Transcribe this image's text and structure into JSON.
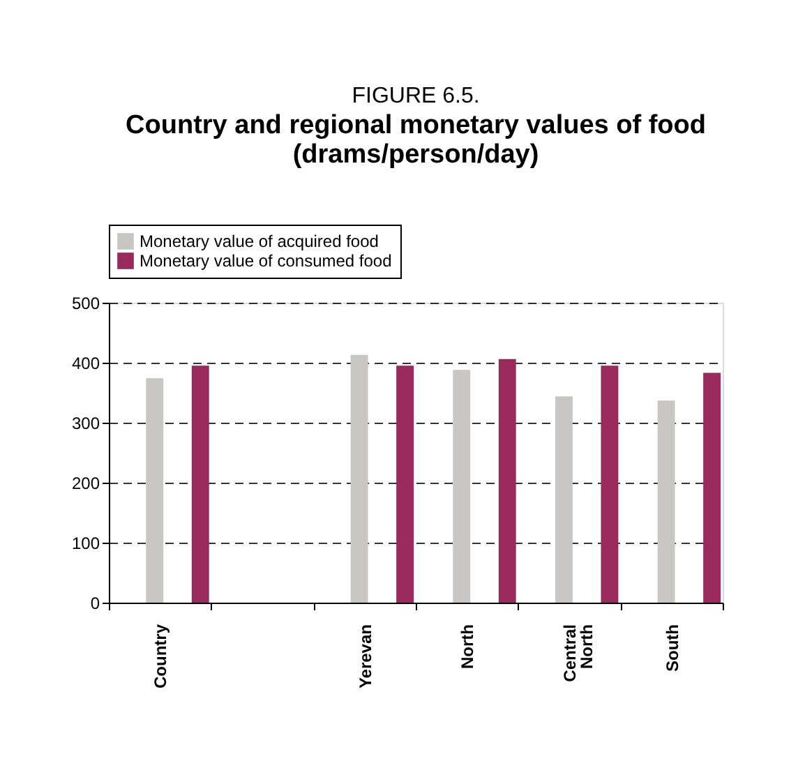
{
  "chart_data": {
    "type": "bar",
    "title": "FIGURE 6.5.",
    "subtitle": "Country and regional monetary values of food (drams/person/day)",
    "categories": [
      "Country",
      null,
      "Yerevan",
      "North",
      "Central North",
      "South"
    ],
    "series": [
      {
        "name": "Monetary value of acquired food",
        "color": "#c8c7c3",
        "values": [
          374,
          null,
          413,
          388,
          344,
          337
        ]
      },
      {
        "name": "Monetary value of consumed food",
        "color": "#9b2a5c",
        "values": [
          395,
          null,
          395,
          406,
          395,
          383
        ]
      }
    ],
    "ylim": [
      0,
      500
    ],
    "yticks": [
      0,
      100,
      200,
      300,
      400,
      500
    ],
    "grid": "y",
    "legend": "top"
  }
}
